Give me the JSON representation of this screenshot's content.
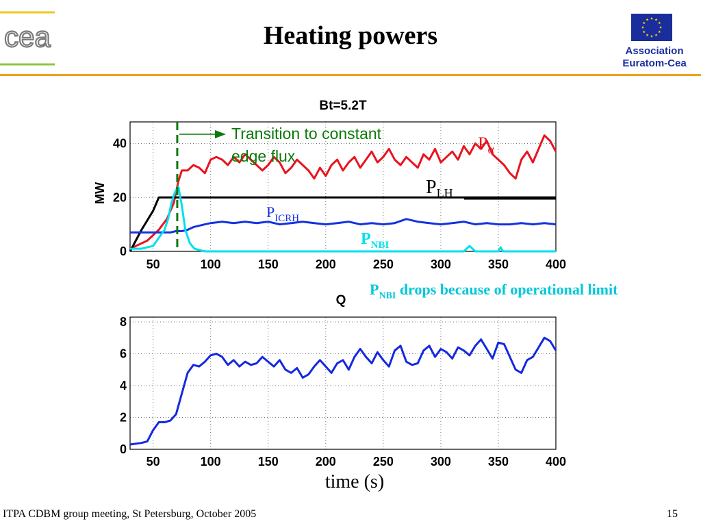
{
  "header": {
    "title": "Heating powers",
    "logo_text": "cea",
    "association_line1": "Association",
    "association_line2": "Euratom-Cea"
  },
  "footer": {
    "left": "ITPA CDBM group meeting, St Petersburg, October 2005",
    "page": "15"
  },
  "annotations": {
    "transition_line1": "Transition to constant",
    "transition_line2": "edge flux",
    "nbi_note_prefix": "P",
    "nbi_note_sub": "NBI",
    "nbi_note_rest": " drops because of operational limit"
  },
  "colors": {
    "alpha": "#e8141e",
    "lh": "#000000",
    "icrh": "#1432e0",
    "nbi": "#00e0ef",
    "q": "#1428e0",
    "transition": "#0a7a0a",
    "accent": "#f0a21e",
    "eu_blue": "#1a2d9c"
  },
  "icons": {
    "flag": "eu-flag-icon",
    "logo": "cea-logo-icon"
  },
  "chart_data": [
    {
      "type": "line",
      "title": "Bt=5.2T",
      "xlabel": "",
      "ylabel": "MW",
      "xlim": [
        30,
        400
      ],
      "ylim": [
        0,
        48
      ],
      "xticks": [
        50,
        100,
        150,
        200,
        250,
        300,
        350,
        400
      ],
      "yticks": [
        0,
        20,
        40
      ],
      "grid": true,
      "vline_x": 71,
      "series": [
        {
          "name": "α",
          "label_prefix": "P",
          "label_sub": "α",
          "color_key": "alpha",
          "x": [
            30,
            45,
            55,
            62,
            68,
            72,
            75,
            80,
            85,
            90,
            95,
            100,
            105,
            110,
            115,
            120,
            125,
            130,
            135,
            140,
            145,
            150,
            155,
            160,
            165,
            170,
            175,
            180,
            185,
            190,
            195,
            200,
            205,
            210,
            215,
            220,
            225,
            230,
            235,
            240,
            245,
            250,
            255,
            260,
            265,
            270,
            275,
            280,
            285,
            290,
            295,
            300,
            305,
            310,
            315,
            320,
            325,
            330,
            335,
            340,
            345,
            350,
            355,
            360,
            365,
            370,
            375,
            380,
            385,
            390,
            395,
            400
          ],
          "y": [
            1,
            4,
            8,
            12,
            18,
            26,
            30,
            30,
            32,
            31,
            29,
            34,
            35,
            34,
            32,
            35,
            33,
            36,
            34,
            32,
            30,
            32,
            35,
            33,
            29,
            31,
            34,
            32,
            30,
            27,
            31,
            28,
            32,
            34,
            30,
            33,
            35,
            31,
            34,
            37,
            33,
            35,
            38,
            34,
            32,
            35,
            33,
            31,
            36,
            34,
            38,
            33,
            35,
            37,
            34,
            39,
            36,
            40,
            38,
            41,
            36,
            34,
            32,
            29,
            27,
            34,
            37,
            33,
            38,
            43,
            41,
            37
          ]
        },
        {
          "name": "LH",
          "label_prefix": "P",
          "label_sub": "LH",
          "color_key": "lh",
          "x": [
            30,
            40,
            50,
            55,
            60,
            70,
            80,
            90,
            100,
            150,
            200,
            210,
            300,
            340,
            345,
            355,
            400
          ],
          "y": [
            0,
            8,
            15,
            20,
            20,
            20,
            20,
            20,
            20,
            20,
            20,
            20,
            20,
            20,
            20,
            20,
            20
          ]
        },
        {
          "name": "ICRH",
          "label_prefix": "P",
          "label_sub": "ICRH",
          "color_key": "icrh",
          "x": [
            30,
            50,
            60,
            65,
            70,
            75,
            80,
            85,
            90,
            95,
            100,
            110,
            120,
            130,
            140,
            150,
            160,
            170,
            180,
            190,
            200,
            210,
            220,
            230,
            240,
            250,
            260,
            270,
            280,
            290,
            300,
            310,
            320,
            330,
            340,
            350,
            360,
            370,
            380,
            390,
            400
          ],
          "y": [
            7,
            7,
            7,
            7,
            7.5,
            7.5,
            8,
            9,
            9.5,
            10,
            10.5,
            11,
            10.5,
            11,
            10.5,
            11,
            10,
            10.5,
            11,
            10.5,
            10,
            10.5,
            11,
            10,
            10.5,
            10,
            10.5,
            12,
            11,
            10.5,
            10,
            10.5,
            11,
            10,
            10.5,
            10,
            10,
            10.5,
            10,
            10.5,
            10
          ]
        },
        {
          "name": "NBI",
          "label_prefix": "P",
          "label_sub": "NBI",
          "color_key": "nbi",
          "x": [
            30,
            40,
            50,
            55,
            60,
            63,
            66,
            69,
            72,
            75,
            78,
            82,
            86,
            90,
            95,
            100,
            150,
            200,
            250,
            300,
            320,
            325,
            330,
            350,
            352,
            354,
            400
          ],
          "y": [
            1,
            1,
            2,
            5,
            8,
            12,
            18,
            22,
            24,
            17,
            8,
            3,
            1,
            0.5,
            0,
            0,
            0,
            0,
            0,
            0,
            0,
            2,
            0,
            0,
            1.5,
            0,
            0
          ]
        }
      ]
    },
    {
      "type": "line",
      "title": "",
      "xlabel": "time (s)",
      "ylabel": "Q",
      "xlim": [
        30,
        400
      ],
      "ylim": [
        0,
        8.3
      ],
      "xticks": [
        50,
        100,
        150,
        200,
        250,
        300,
        350,
        400
      ],
      "yticks": [
        0,
        2,
        4,
        6,
        8
      ],
      "grid": true,
      "series": [
        {
          "color_key": "q",
          "x": [
            30,
            40,
            45,
            50,
            55,
            60,
            65,
            70,
            75,
            80,
            85,
            90,
            95,
            100,
            105,
            110,
            115,
            120,
            125,
            130,
            135,
            140,
            145,
            150,
            155,
            160,
            165,
            170,
            175,
            180,
            185,
            190,
            195,
            200,
            205,
            210,
            215,
            220,
            225,
            230,
            235,
            240,
            245,
            250,
            255,
            260,
            265,
            270,
            275,
            280,
            285,
            290,
            295,
            300,
            305,
            310,
            315,
            320,
            325,
            330,
            335,
            340,
            345,
            350,
            355,
            360,
            365,
            370,
            375,
            380,
            385,
            390,
            395,
            400
          ],
          "y": [
            0.3,
            0.4,
            0.5,
            1.2,
            1.7,
            1.7,
            1.8,
            2.2,
            3.5,
            4.8,
            5.3,
            5.2,
            5.5,
            5.9,
            6.0,
            5.8,
            5.3,
            5.6,
            5.2,
            5.5,
            5.3,
            5.4,
            5.8,
            5.5,
            5.2,
            5.6,
            5.0,
            4.8,
            5.1,
            4.5,
            4.7,
            5.2,
            5.6,
            5.2,
            4.8,
            5.4,
            5.6,
            5.0,
            5.8,
            6.3,
            5.8,
            5.4,
            6.1,
            5.6,
            5.2,
            6.2,
            6.5,
            5.5,
            5.3,
            5.4,
            6.2,
            6.5,
            5.8,
            6.3,
            6.1,
            5.7,
            6.4,
            6.2,
            5.9,
            6.5,
            6.9,
            6.3,
            5.7,
            6.7,
            6.6,
            5.8,
            5.0,
            4.8,
            5.6,
            5.8,
            6.4,
            7.0,
            6.8,
            6.2
          ]
        }
      ]
    }
  ]
}
